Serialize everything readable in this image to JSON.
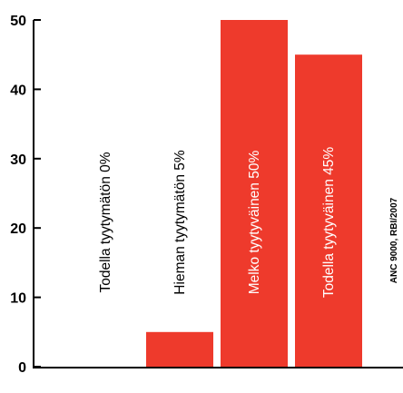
{
  "chart_data": {
    "type": "bar",
    "categories": [
      "Todella tyytymätön 0%",
      "Hieman tyytymätön 5%",
      "Melko tyytyväinen 50%",
      "Todella tyytyväinen 45%"
    ],
    "values": [
      0,
      5,
      50,
      45
    ],
    "title": "",
    "xlabel": "",
    "ylabel": "",
    "ylim": [
      0,
      50
    ],
    "yticks": [
      "0",
      "10",
      "20",
      "30",
      "40",
      "50"
    ],
    "grid": false,
    "legend": "none",
    "note": "ANC 9000, RBI/2007"
  },
  "colors": {
    "bar": "#ee3a2c",
    "axis": "#000000",
    "label_on_bar": "#ffffff",
    "label_off_bar": "#000000"
  }
}
